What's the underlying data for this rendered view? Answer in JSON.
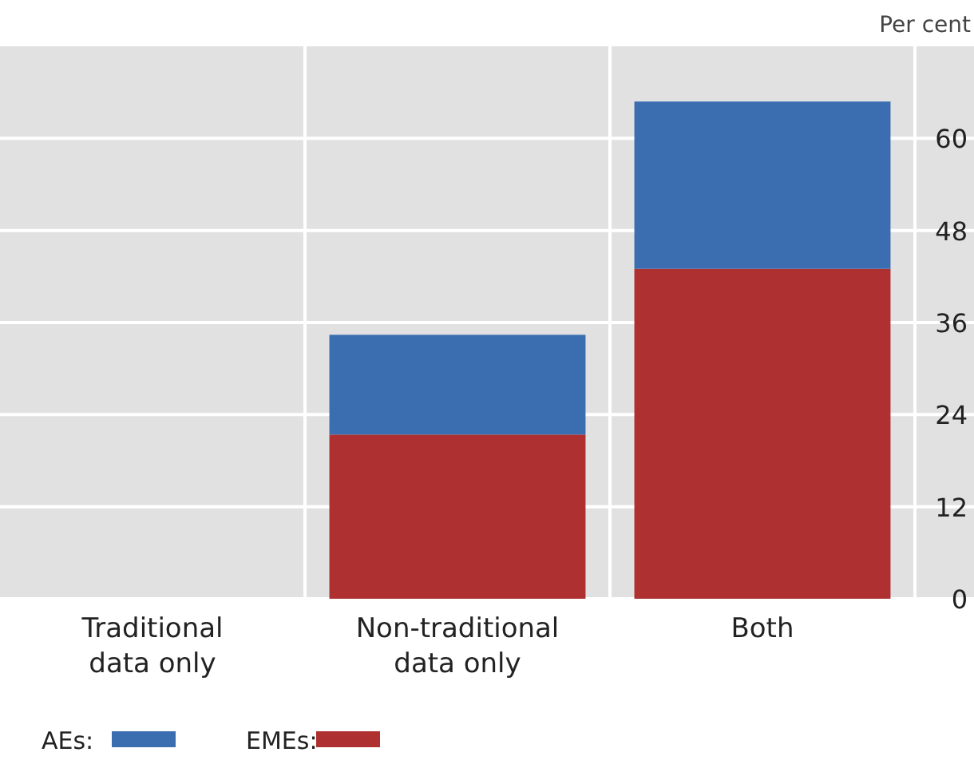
{
  "chart_data": {
    "type": "bar",
    "stacked": true,
    "ylabel": "Per cent",
    "categories": [
      "Traditional\ndata only",
      "Non-traditional\ndata only",
      "Both"
    ],
    "series": [
      {
        "name": "EMEs:",
        "color": "#ae3030",
        "values": [
          0,
          21.4,
          43.0
        ]
      },
      {
        "name": "AEs:",
        "color": "#3b6db1",
        "values": [
          0,
          13.0,
          21.8
        ]
      }
    ],
    "ylim": [
      0,
      72
    ],
    "yticks": [
      0,
      12,
      24,
      36,
      48,
      60
    ],
    "grid": true,
    "legend": "bottom left"
  }
}
